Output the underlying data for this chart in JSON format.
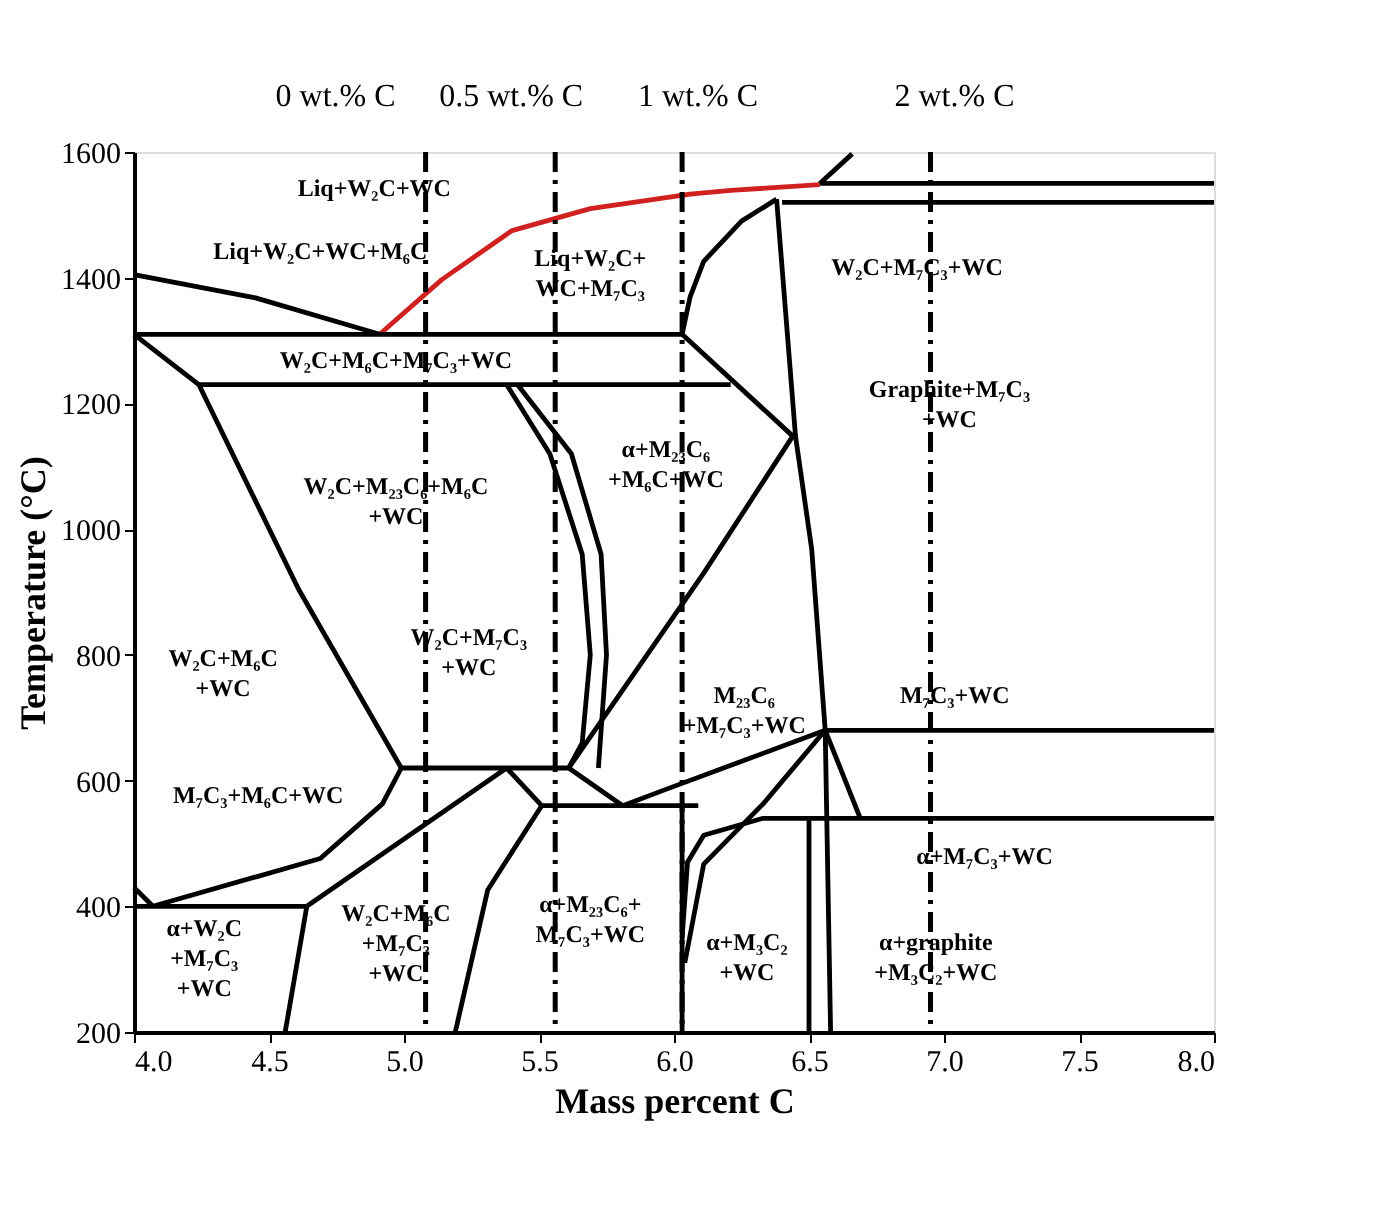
{
  "chart_data": {
    "type": "line",
    "xlabel": "Mass percent C",
    "ylabel": "Temperature (°C)",
    "xlim": [
      4.0,
      8.0
    ],
    "ylim": [
      200,
      1600
    ],
    "xticks": [
      {
        "value": 4.0,
        "label": "4.0"
      },
      4.5,
      {
        "value": 5.0,
        "label": "5.0"
      },
      5.5,
      {
        "value": 6.0,
        "label": "6.0"
      },
      6.5,
      {
        "value": 7.0,
        "label": "7.0"
      },
      7.5,
      {
        "value": 8.0,
        "label": "8.0"
      }
    ],
    "yticks": [
      200,
      400,
      600,
      800,
      {
        "value": 1000,
        "label": "1000"
      },
      {
        "value": 1200,
        "label": "1200"
      },
      {
        "value": 1400,
        "label": "1400"
      },
      {
        "value": 1600,
        "label": "1600"
      }
    ],
    "grid": false,
    "legend": false,
    "marker": "none",
    "series": [
      {
        "color": "#000000",
        "x": [
          4.0,
          4.45,
          4.91
        ],
        "values": [
          1405,
          1368,
          1310
        ]
      },
      {
        "color": "#d02020",
        "x": [
          4.91,
          5.14,
          5.4,
          5.69,
          6.06,
          6.21,
          6.54
        ],
        "values": [
          1310,
          1397,
          1475,
          1510,
          1533,
          1539,
          1548
        ]
      },
      {
        "color": "#000000",
        "x": [
          4.0,
          6.03
        ],
        "values": [
          1310,
          1310
        ]
      },
      {
        "color": "#000000",
        "x": [
          4.24,
          6.21
        ],
        "values": [
          1230,
          1230
        ]
      },
      {
        "color": "#000000",
        "x": [
          4.0,
          4.24
        ],
        "values": [
          1310,
          1230
        ]
      },
      {
        "color": "#000000",
        "x": [
          6.03,
          6.44
        ],
        "values": [
          1310,
          1148
        ]
      },
      {
        "color": "#000000",
        "x": [
          6.03,
          6.06,
          6.11,
          6.25,
          6.38
        ],
        "values": [
          1310,
          1370,
          1426,
          1490,
          1525
        ]
      },
      {
        "color": "#000000",
        "x": [
          6.38,
          6.45,
          6.51,
          6.56,
          6.58
        ],
        "values": [
          1525,
          1148,
          968,
          680,
          200
        ]
      },
      {
        "color": "#000000",
        "x": [
          6.54,
          8.0
        ],
        "values": [
          1550,
          1550
        ]
      },
      {
        "color": "#000000",
        "x": [
          6.4,
          8.0
        ],
        "values": [
          1520,
          1520
        ]
      },
      {
        "color": "#000000",
        "x": [
          6.54,
          6.66
        ],
        "values": [
          1550,
          1597
        ]
      },
      {
        "color": "#000000",
        "x": [
          6.44,
          6.11,
          5.61
        ],
        "values": [
          1148,
          930,
          620
        ]
      },
      {
        "color": "#000000",
        "x": [
          4.99,
          5.61
        ],
        "values": [
          620,
          620
        ]
      },
      {
        "color": "#000000",
        "x": [
          4.24,
          4.61,
          4.99
        ],
        "values": [
          1230,
          904,
          620
        ]
      },
      {
        "color": "#000000",
        "x": [
          4.99,
          4.92,
          4.69,
          4.07
        ],
        "values": [
          620,
          563,
          476,
          400
        ]
      },
      {
        "color": "#000000",
        "x": [
          4.0,
          4.64
        ],
        "values": [
          400,
          400
        ]
      },
      {
        "color": "#000000",
        "x": [
          4.0,
          4.07
        ],
        "values": [
          430,
          400
        ]
      },
      {
        "color": "#000000",
        "x": [
          4.64,
          4.56
        ],
        "values": [
          400,
          200
        ]
      },
      {
        "color": "#000000",
        "x": [
          4.64,
          5.38
        ],
        "values": [
          400,
          620
        ]
      },
      {
        "color": "#000000",
        "x": [
          5.38,
          5.51
        ],
        "values": [
          620,
          560
        ]
      },
      {
        "color": "#000000",
        "x": [
          5.51,
          6.09
        ],
        "values": [
          560,
          560
        ]
      },
      {
        "color": "#000000",
        "x": [
          5.51,
          5.31,
          5.19
        ],
        "values": [
          560,
          426,
          200
        ]
      },
      {
        "color": "#000000",
        "x": [
          5.61,
          5.81
        ],
        "values": [
          620,
          560
        ]
      },
      {
        "color": "#000000",
        "x": [
          5.81,
          5.97,
          6.56,
          8.0
        ],
        "values": [
          560,
          586,
          680,
          680
        ]
      },
      {
        "color": "#000000",
        "x": [
          5.38,
          5.54,
          5.66,
          5.69,
          5.66,
          5.61
        ],
        "values": [
          1230,
          1120,
          960,
          800,
          660,
          620
        ]
      },
      {
        "color": "#000000",
        "x": [
          5.42,
          5.62,
          5.73,
          5.75,
          5.72
        ],
        "values": [
          1230,
          1120,
          960,
          800,
          620
        ]
      },
      {
        "color": "#000000",
        "x": [
          6.03,
          6.03
        ],
        "values": [
          560,
          200
        ]
      },
      {
        "color": "#000000",
        "x": [
          6.03,
          6.05,
          6.11,
          6.33,
          6.49,
          8.0
        ],
        "values": [
          350,
          470,
          513,
          540,
          540,
          540
        ]
      },
      {
        "color": "#000000",
        "x": [
          6.5,
          6.5
        ],
        "values": [
          540,
          200
        ]
      },
      {
        "color": "#000000",
        "x": [
          6.04,
          6.11,
          6.33,
          6.56
        ],
        "values": [
          310,
          467,
          563,
          680
        ]
      },
      {
        "color": "#000000",
        "x": [
          6.56,
          6.69
        ],
        "values": [
          680,
          540
        ]
      }
    ],
    "ref_lines": [
      {
        "axis": "x",
        "value": 5.08,
        "label": "0 wt.% C",
        "color": "#000000",
        "line_style": "dashed"
      },
      {
        "axis": "x",
        "value": 5.56,
        "label": "0.5 wt.% C",
        "color": "#000000",
        "line_style": "dashed"
      },
      {
        "axis": "x",
        "value": 6.03,
        "label": "1 wt.% C",
        "color": "#000000",
        "line_style": "dashed"
      },
      {
        "axis": "x",
        "value": 6.95,
        "label": "2 wt.% C",
        "color": "#000000",
        "line_style": "dashed"
      }
    ],
    "annotations": [
      "Liq+W₂C+WC",
      "Liq+W₂C+WC+M₆C",
      "Liq+W₂C+\nWC+M₇C₃",
      "W₂C+M₆C+M₇C₃+WC",
      "W₂C+M₇C₃+WC",
      "Graphite+M₇C₃\n+WC",
      "W₂C+M₂₃C₆+M₆C\n+WC",
      "α+M₂₃C₆\n+M₆C+WC",
      "W₂C+M₇C₃\n+WC",
      "W₂C+M₆C\n+WC",
      "M₂₃C₆\n+M₇C₃+WC",
      "M₇C₃+WC",
      "M₇C₃+M₆C+WC",
      "α+M₇C₃+WC",
      "α+W₂C\n+M₇C₃\n+WC",
      "W₂C+M₆C\n+M₇C₃\n+WC",
      "α+M₂₃C₆+\nM₇C₃+WC",
      "α+M₃C₂\n+WC",
      "α+graphite\n+M₃C₂+WC"
    ]
  }
}
